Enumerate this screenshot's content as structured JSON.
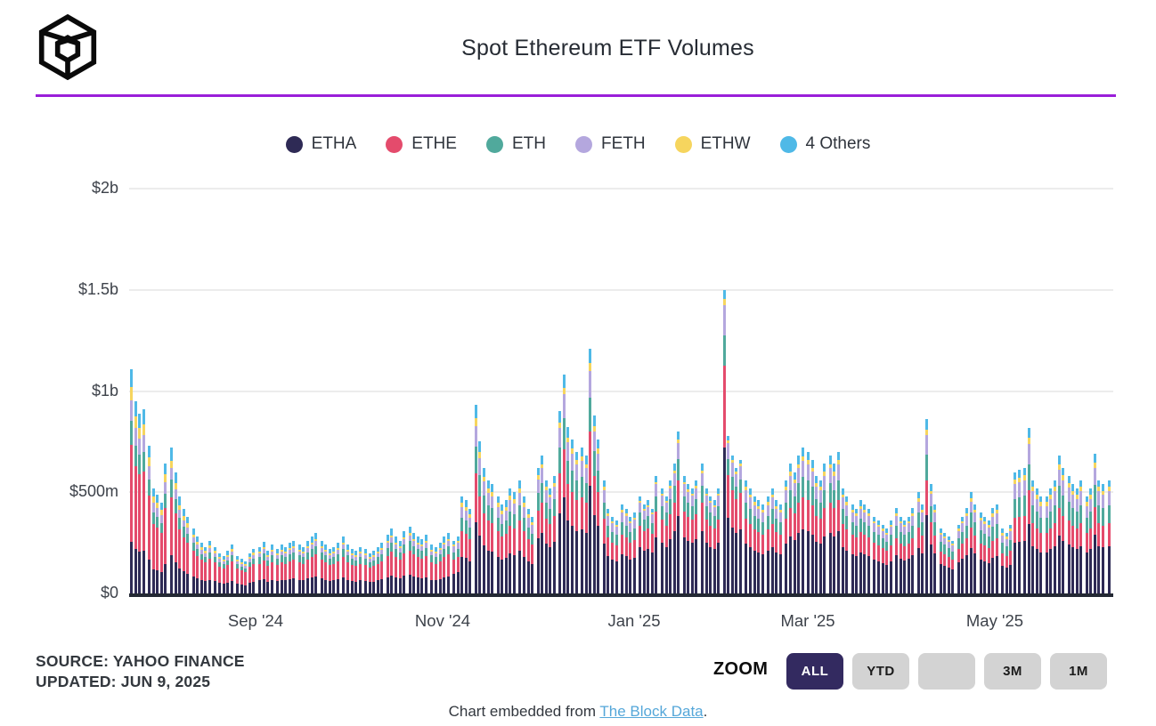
{
  "header": {
    "title": "Spot Ethereum ETF Volumes",
    "logo_name": "the-block-cube-logo",
    "divider_color": "#9a1ed9"
  },
  "legend": [
    {
      "label": "ETHA",
      "color": "#2e2a55"
    },
    {
      "label": "ETHE",
      "color": "#e44b6c"
    },
    {
      "label": "ETH",
      "color": "#50a99c"
    },
    {
      "label": "FETH",
      "color": "#b4a7de"
    },
    {
      "label": "ETHW",
      "color": "#f6d55e"
    },
    {
      "label": "4 Others",
      "color": "#4fb9e7"
    }
  ],
  "chart_data": {
    "type": "bar",
    "subtype": "stacked-daily-bars",
    "title": "Spot Ethereum ETF Volumes",
    "unit": "USD millions per day",
    "xlabel": "",
    "ylabel": "Daily volume",
    "ylim": [
      0,
      2000
    ],
    "grid": true,
    "legend_position": "top-center",
    "series_names": [
      "ETHA",
      "ETHE",
      "ETH",
      "FETH",
      "ETHW",
      "4 Others"
    ],
    "series_colors": [
      "#2e2a55",
      "#e44b6c",
      "#50a99c",
      "#b4a7de",
      "#f6d55e",
      "#4fb9e7"
    ],
    "stack_order_bottom_to_top": [
      "ETHA",
      "ETHE",
      "ETH",
      "FETH",
      "ETHW",
      "4 Others"
    ],
    "y_ticks": [
      {
        "label": "$0",
        "value": 0
      },
      {
        "label": "$500m",
        "value": 500
      },
      {
        "label": "$1b",
        "value": 1000
      },
      {
        "label": "$1.5b",
        "value": 1500
      },
      {
        "label": "$2b",
        "value": 2000
      }
    ],
    "x_ticks": [
      {
        "label": "Sep '24",
        "px": 287
      },
      {
        "label": "Nov '24",
        "px": 497
      },
      {
        "label": "Jan '25",
        "px": 712
      },
      {
        "label": "Mar '25",
        "px": 907
      },
      {
        "label": "May '25",
        "px": 1117
      }
    ],
    "notable_points_musd": {
      "launch_day_total": 1110,
      "feb_spike_total": 1500,
      "dec_spike_total": 1210
    },
    "weekly_clusters_daily_totals_musd": [
      [
        1110,
        950,
        890,
        910
      ],
      [
        730,
        520,
        490,
        450,
        640
      ],
      [
        720,
        600,
        480,
        420,
        380
      ],
      [
        320,
        280,
        250,
        230,
        260
      ],
      [
        230,
        200,
        185,
        210,
        240
      ],
      [
        185,
        170,
        160,
        200,
        220
      ],
      [
        230,
        255,
        210,
        240
      ],
      [
        220,
        240,
        230,
        250,
        260
      ],
      [
        240,
        230,
        260,
        280,
        300
      ],
      [
        260,
        240,
        220,
        230,
        250
      ],
      [
        280,
        240,
        220,
        210,
        230
      ],
      [
        220,
        200,
        210,
        230,
        250
      ],
      [
        290,
        320,
        280,
        260,
        310
      ],
      [
        330,
        300,
        280,
        270,
        290
      ],
      [
        240,
        230,
        250,
        280,
        300
      ],
      [
        260,
        280,
        480,
        460,
        420
      ],
      [
        930,
        750,
        620,
        560,
        540
      ],
      [
        480,
        440,
        460,
        520,
        500
      ],
      [
        560,
        480,
        420,
        380
      ],
      [
        620,
        680,
        560,
        520,
        580
      ],
      [
        900,
        1080,
        820,
        760,
        700
      ],
      [
        720,
        680,
        1210,
        880,
        760
      ],
      [
        560,
        420,
        380,
        360
      ],
      [
        440,
        420,
        380,
        400
      ],
      [
        480,
        440,
        460,
        420,
        580
      ],
      [
        520,
        480,
        560,
        640,
        800
      ],
      [
        580,
        540,
        520,
        560
      ],
      [
        640,
        520,
        480,
        460,
        520
      ],
      [
        1500,
        780,
        680,
        620,
        660
      ],
      [
        560,
        520,
        480,
        460,
        440
      ],
      [
        480,
        520,
        460,
        440
      ],
      [
        560,
        640,
        600,
        680,
        720
      ],
      [
        700,
        660,
        580,
        560,
        640
      ],
      [
        680,
        640,
        700,
        520,
        480
      ],
      [
        440,
        420,
        460,
        440,
        420
      ],
      [
        380,
        360,
        340,
        320,
        360
      ],
      [
        420,
        380,
        360,
        380,
        420
      ],
      [
        500,
        440,
        860,
        540,
        440
      ],
      [
        320,
        300,
        280,
        260
      ],
      [
        340,
        380,
        420,
        500,
        440
      ],
      [
        400,
        380,
        360,
        420,
        440
      ],
      [
        320,
        300,
        340,
        600,
        610
      ],
      [
        620,
        820,
        560,
        520,
        480
      ],
      [
        480,
        520,
        560,
        680,
        620
      ],
      [
        580,
        540,
        520,
        560
      ],
      [
        480,
        520,
        690,
        560,
        540
      ],
      [
        560
      ]
    ],
    "series_share_profiles": [
      [
        0.23,
        0.43,
        0.11,
        0.09,
        0.06,
        0.08
      ],
      [
        0.26,
        0.4,
        0.12,
        0.08,
        0.05,
        0.09
      ],
      [
        0.28,
        0.36,
        0.14,
        0.08,
        0.04,
        0.1
      ],
      [
        0.38,
        0.26,
        0.14,
        0.11,
        0.04,
        0.07
      ],
      [
        0.44,
        0.22,
        0.14,
        0.11,
        0.03,
        0.06
      ],
      [
        0.48,
        0.22,
        0.13,
        0.1,
        0.02,
        0.05
      ],
      [
        0.48,
        0.27,
        0.1,
        0.1,
        0.02,
        0.03
      ],
      [
        0.44,
        0.22,
        0.14,
        0.11,
        0.03,
        0.06
      ],
      [
        0.45,
        0.2,
        0.15,
        0.11,
        0.03,
        0.06
      ],
      [
        0.42,
        0.2,
        0.16,
        0.12,
        0.04,
        0.06
      ]
    ],
    "week_share_profile_index": [
      0,
      0,
      1,
      1,
      1,
      1,
      2,
      2,
      2,
      2,
      2,
      2,
      2,
      2,
      2,
      3,
      3,
      3,
      3,
      4,
      4,
      4,
      4,
      4,
      5,
      5,
      5,
      5,
      6,
      7,
      7,
      7,
      7,
      7,
      7,
      7,
      8,
      8,
      8,
      8,
      9,
      9,
      9,
      9,
      9,
      9,
      9
    ]
  },
  "footnote": {
    "source_line1": "SOURCE: YAHOO FINANCE",
    "source_line2": "UPDATED: JUN 9, 2025"
  },
  "zoom_controls": {
    "label": "ZOOM",
    "buttons": [
      {
        "label": "ALL",
        "active": true
      },
      {
        "label": "YTD",
        "active": false
      },
      {
        "label": "",
        "active": false
      },
      {
        "label": "3M",
        "active": false
      },
      {
        "label": "1M",
        "active": false
      }
    ]
  },
  "embed": {
    "prefix": "Chart embedded from ",
    "link_text": "The Block Data",
    "suffix": "."
  }
}
